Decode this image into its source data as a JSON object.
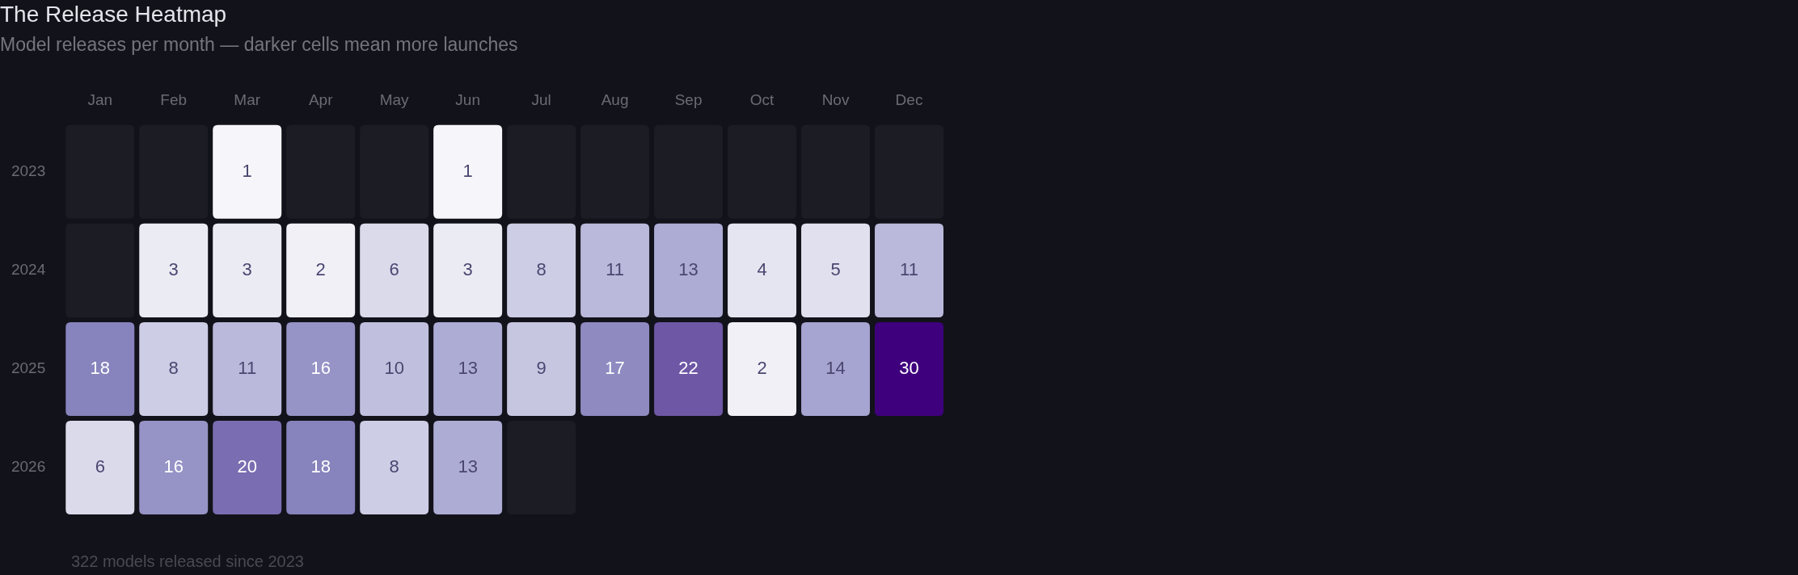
{
  "chart_data": {
    "type": "heatmap",
    "title": "The Release Heatmap",
    "subtitle": "Model releases per month — darker cells mean more launches",
    "categories": [
      "Jan",
      "Feb",
      "Mar",
      "Apr",
      "May",
      "Jun",
      "Jul",
      "Aug",
      "Sep",
      "Oct",
      "Nov",
      "Dec"
    ],
    "y_categories": [
      "2023",
      "2024",
      "2025",
      "2026"
    ],
    "cells": [
      [
        null,
        null,
        1,
        null,
        null,
        1,
        null,
        null,
        null,
        null,
        null,
        null
      ],
      [
        null,
        3,
        3,
        2,
        6,
        3,
        8,
        11,
        13,
        4,
        5,
        11
      ],
      [
        18,
        8,
        11,
        16,
        10,
        13,
        9,
        17,
        22,
        2,
        14,
        30
      ],
      [
        6,
        16,
        20,
        18,
        8,
        13,
        null,
        null,
        null,
        null,
        null,
        null
      ]
    ],
    "data_labels": true,
    "annotations": [
      "322 models released since 2023"
    ]
  }
}
